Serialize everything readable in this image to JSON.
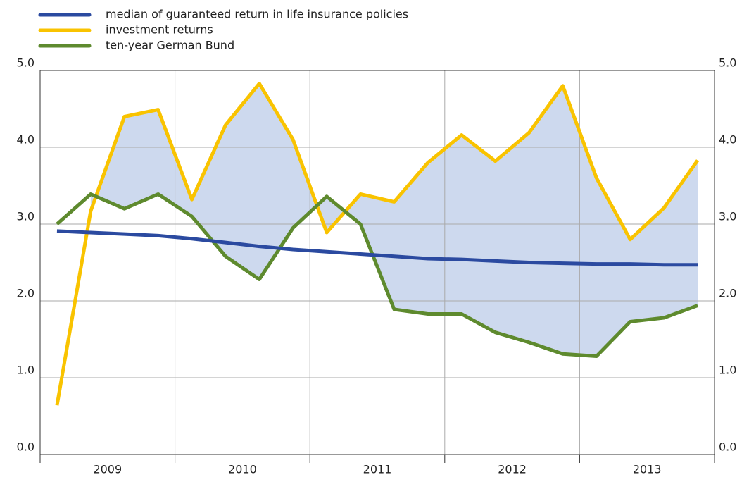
{
  "chart_data": {
    "type": "line",
    "categories": [
      null,
      null,
      null,
      null,
      null,
      null,
      null,
      null,
      null,
      null,
      null,
      null,
      null,
      null,
      null,
      null,
      null,
      null,
      null,
      null
    ],
    "year_labels": [
      "2009",
      "2010",
      "2011",
      "2012",
      "2013"
    ],
    "series": [
      {
        "name": "median of guaranteed return in life insurance policies",
        "color": "#2b4aa0",
        "values": [
          2.91,
          2.89,
          2.87,
          2.85,
          2.81,
          2.76,
          2.71,
          2.67,
          2.64,
          2.61,
          2.58,
          2.55,
          2.54,
          2.52,
          2.5,
          2.49,
          2.48,
          2.48,
          2.47,
          2.47
        ]
      },
      {
        "name": "investment returns",
        "color": "#f9c300",
        "values": [
          0.64,
          3.17,
          4.4,
          4.49,
          3.32,
          4.29,
          4.83,
          4.1,
          2.89,
          3.39,
          3.29,
          3.8,
          4.16,
          3.82,
          4.19,
          4.8,
          3.6,
          2.8,
          3.21,
          3.83
        ]
      },
      {
        "name": "ten-year German Bund",
        "color": "#5e8a2e",
        "values": [
          3.0,
          3.39,
          3.2,
          3.39,
          3.1,
          2.58,
          2.28,
          2.95,
          3.36,
          3.0,
          1.89,
          1.83,
          1.83,
          1.59,
          1.46,
          1.31,
          1.28,
          1.73,
          1.78,
          1.94
        ]
      }
    ],
    "band_color": "#cdd9ee",
    "ylim": [
      0,
      5
    ],
    "yticks": [
      {
        "value": 0,
        "label": "0.0"
      },
      {
        "value": 1,
        "label": "1.0"
      },
      {
        "value": 2,
        "label": "2.0"
      },
      {
        "value": 3,
        "label": "3.0"
      },
      {
        "value": 4,
        "label": "4.0"
      },
      {
        "value": 5,
        "label": "5.0"
      }
    ],
    "grid": true
  }
}
